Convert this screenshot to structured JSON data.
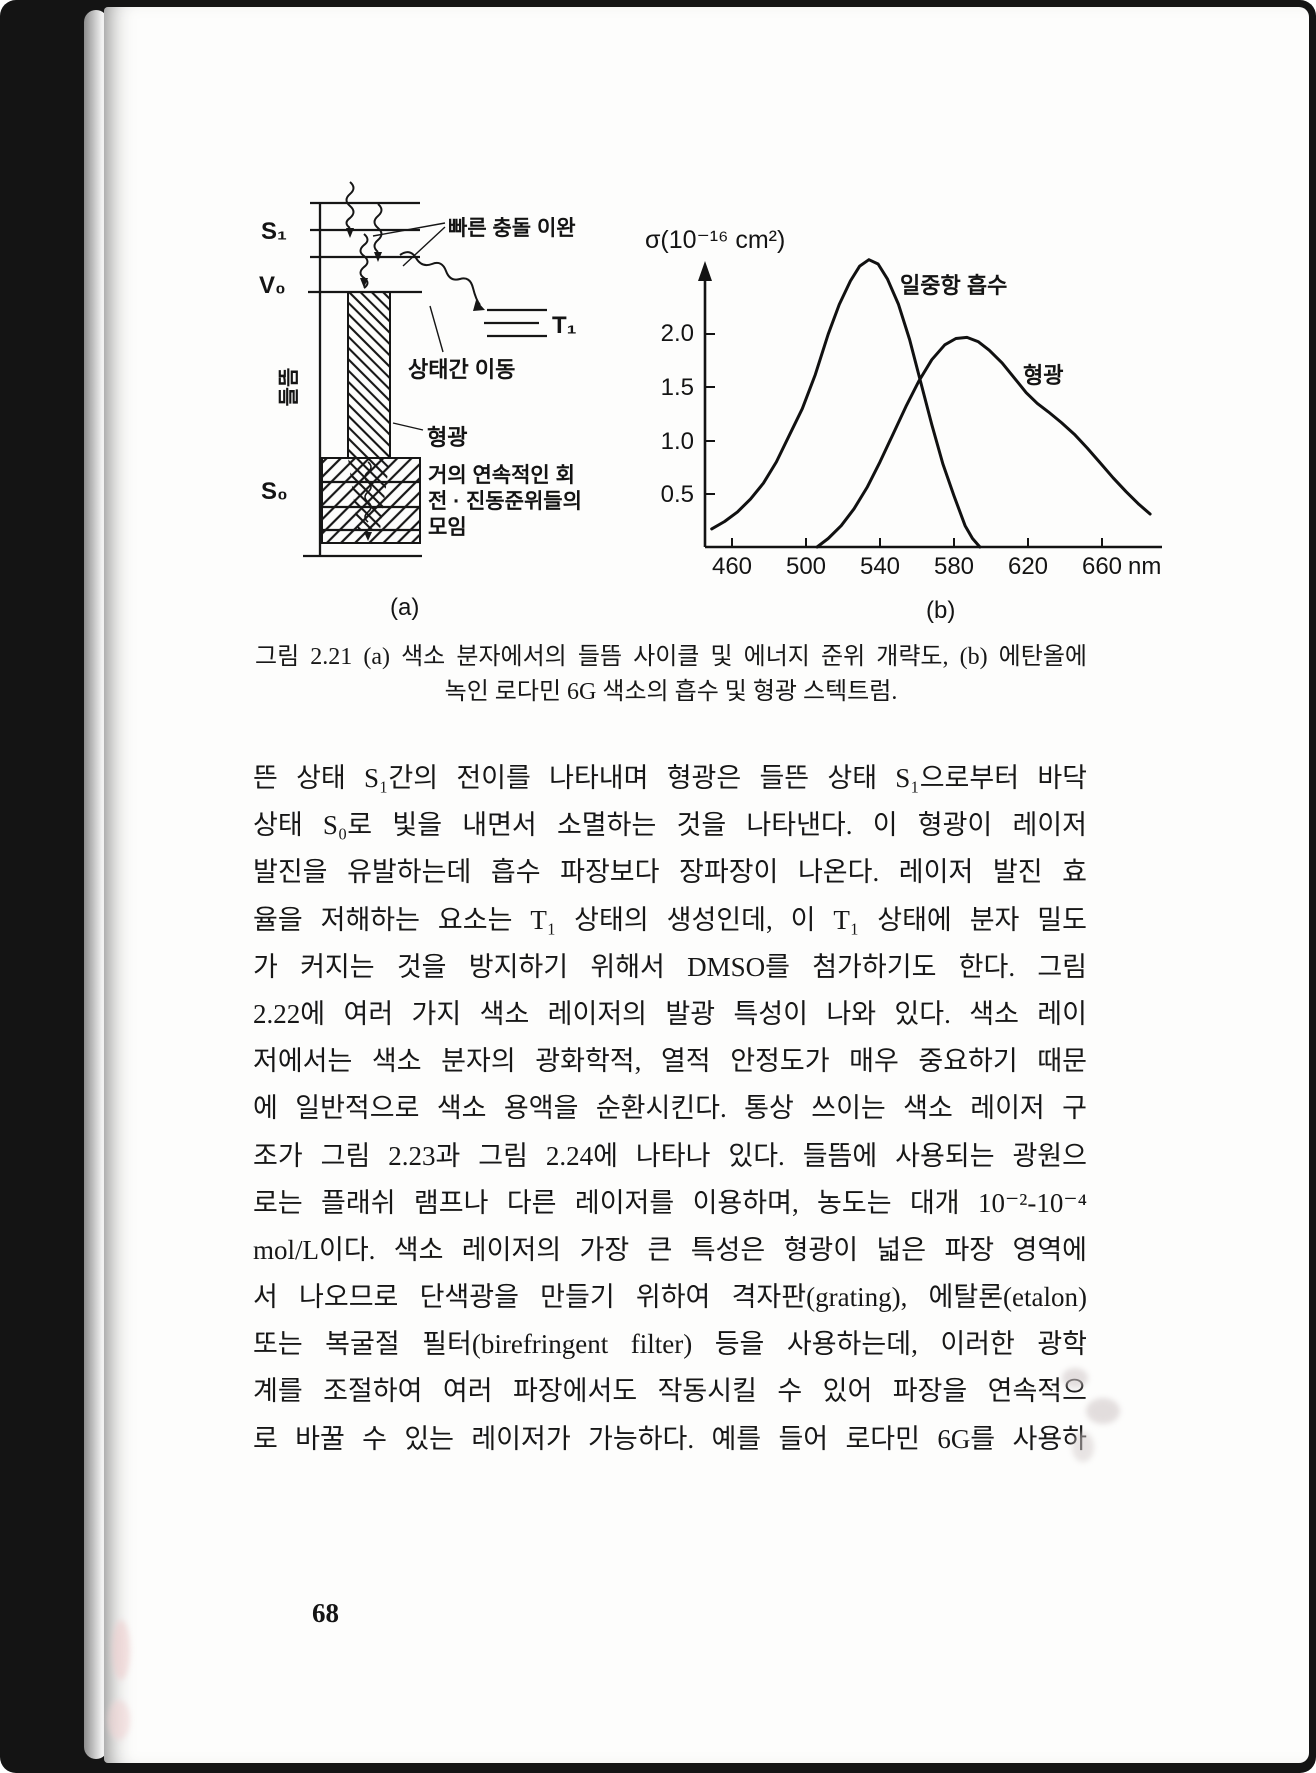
{
  "page": {
    "number": "68"
  },
  "figure": {
    "caption": {
      "line1": "그림 2.21 (a) 색소 분자에서의 들뜸 사이클 및 에너지 준위 개략도, (b) 에탄올에",
      "line2": "녹인 로다민 6G 색소의 흡수 및 형광 스텍트럼."
    },
    "panel_a": {
      "label": "(a)",
      "level_s1": "S₁",
      "level_v0": "V₀",
      "level_s0": "S₀",
      "level_t1": "T₁",
      "ann_fast_relaxation": "빠른 충돌 이완",
      "ann_excitation": "들뜸",
      "ann_intersystem": "상태간 이동",
      "ann_fluorescence": "형광",
      "ann_s0_line1": "거의 연속적인 회",
      "ann_s0_line2": "전 · 진동준위들의",
      "ann_s0_line3": "모임"
    },
    "panel_b": {
      "label": "(b)",
      "y_axis_label": "σ(10⁻¹⁶ cm²)",
      "x_axis_unit": "nm",
      "label_absorption": "일중항 흡수",
      "label_fluorescence": "형광"
    }
  },
  "chart_data": {
    "type": "line",
    "title": "에탄올에 녹인 로다민 6G 색소의 흡수 및 형광 스펙트럼",
    "xlabel": "nm",
    "ylabel": "σ(10⁻¹⁶ cm²)",
    "xlim": [
      448,
      690
    ],
    "ylim": [
      0,
      2.8
    ],
    "grid": false,
    "legend_position": "inline-annotations",
    "x_ticks": [
      460,
      500,
      540,
      580,
      620,
      660
    ],
    "y_ticks": [
      "2.0",
      "1.5",
      "1.0",
      "0.5"
    ],
    "series": [
      {
        "name": "일중항 흡수",
        "x": [
          449,
          456,
          463,
          470,
          477,
          484,
          491,
          498,
          505,
          512,
          518,
          524,
          529,
          534,
          539,
          544,
          550,
          556,
          562,
          568,
          574,
          580,
          586,
          590,
          594
        ],
        "y": [
          0.17,
          0.24,
          0.33,
          0.45,
          0.6,
          0.8,
          1.05,
          1.3,
          1.62,
          2.0,
          2.28,
          2.5,
          2.64,
          2.7,
          2.66,
          2.52,
          2.28,
          1.95,
          1.55,
          1.15,
          0.78,
          0.48,
          0.2,
          0.08,
          0.0
        ]
      },
      {
        "name": "형광",
        "x": [
          506,
          512,
          519,
          526,
          533,
          540,
          547,
          554,
          561,
          568,
          575,
          581,
          587,
          593,
          599,
          606,
          613,
          619,
          625,
          631,
          638,
          645,
          652,
          659,
          666,
          673,
          680,
          686
        ],
        "y": [
          0.0,
          0.08,
          0.2,
          0.36,
          0.56,
          0.8,
          1.06,
          1.32,
          1.56,
          1.76,
          1.9,
          1.96,
          1.97,
          1.93,
          1.85,
          1.73,
          1.58,
          1.45,
          1.35,
          1.27,
          1.17,
          1.06,
          0.93,
          0.79,
          0.65,
          0.52,
          0.4,
          0.31
        ]
      }
    ]
  },
  "body": {
    "lines": [
      "뜬 상태 S₁간의 전이를 나타내며 형광은 들뜬 상태 S₁으로부터 바닥",
      "상태 S₀로 빛을 내면서 소멸하는 것을 나타낸다. 이 형광이 레이저",
      "발진을 유발하는데 흡수 파장보다 장파장이 나온다. 레이저 발진 효",
      "율을 저해하는 요소는 T₁ 상태의 생성인데, 이 T₁ 상태에 분자 밀도",
      "가 커지는 것을 방지하기 위해서 DMSO를 첨가하기도 한다. 그림",
      "2.22에 여러 가지 색소 레이저의 발광 특성이 나와 있다. 색소 레이",
      "저에서는 색소 분자의 광화학적, 열적 안정도가 매우 중요하기 때문",
      "에 일반적으로 색소 용액을 순환시킨다. 통상 쓰이는 색소 레이저 구",
      "조가 그림 2.23과 그림 2.24에 나타나 있다. 들뜸에 사용되는 광원으",
      "로는 플래쉬 램프나 다른 레이저를 이용하며, 농도는 대개 10⁻²-10⁻⁴",
      "mol/L이다. 색소 레이저의 가장 큰 특성은 형광이 넓은 파장 영역에",
      "서 나오므로 단색광을 만들기 위하여 격자판(grating), 에탈론(etalon)",
      "또는 복굴절 필터(birefringent filter) 등을 사용하는데, 이러한 광학",
      "계를 조절하여 여러 파장에서도 작동시킬 수 있어 파장을 연속적으",
      "로 바꿀 수 있는 레이저가 가능하다. 예를 들어 로다민 6G를 사용하"
    ]
  }
}
